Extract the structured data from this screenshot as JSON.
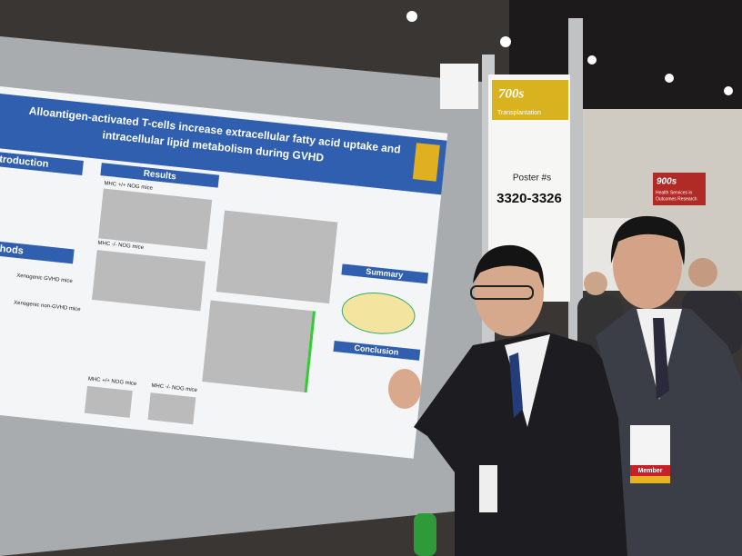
{
  "poster": {
    "title_line1": "Alloantigen-activated T-cells increase extracellular fatty acid uptake and",
    "title_line2": "intracellular lipid metabolism during GVHD",
    "sections": [
      "Introduction",
      "Methods",
      "Results",
      "Summary",
      "Conclusion"
    ],
    "labels": [
      "MHC +/+ NOG mice",
      "MHC -/- NOG mice",
      "Xenogenic GVHD mice",
      "Xenogenic non-GVHD mice",
      "MHC +/+ NOG mice",
      "MHC -/- NOG mice"
    ]
  },
  "sign": {
    "number": "700s",
    "category": "Transplantation",
    "poster_label": "Poster #s",
    "poster_range": "3320-3326"
  },
  "side_sign": {
    "number": "900s",
    "category_line1": "Health Services in",
    "category_line2": "Outcomes Research"
  },
  "badge": {
    "label": "Member"
  }
}
